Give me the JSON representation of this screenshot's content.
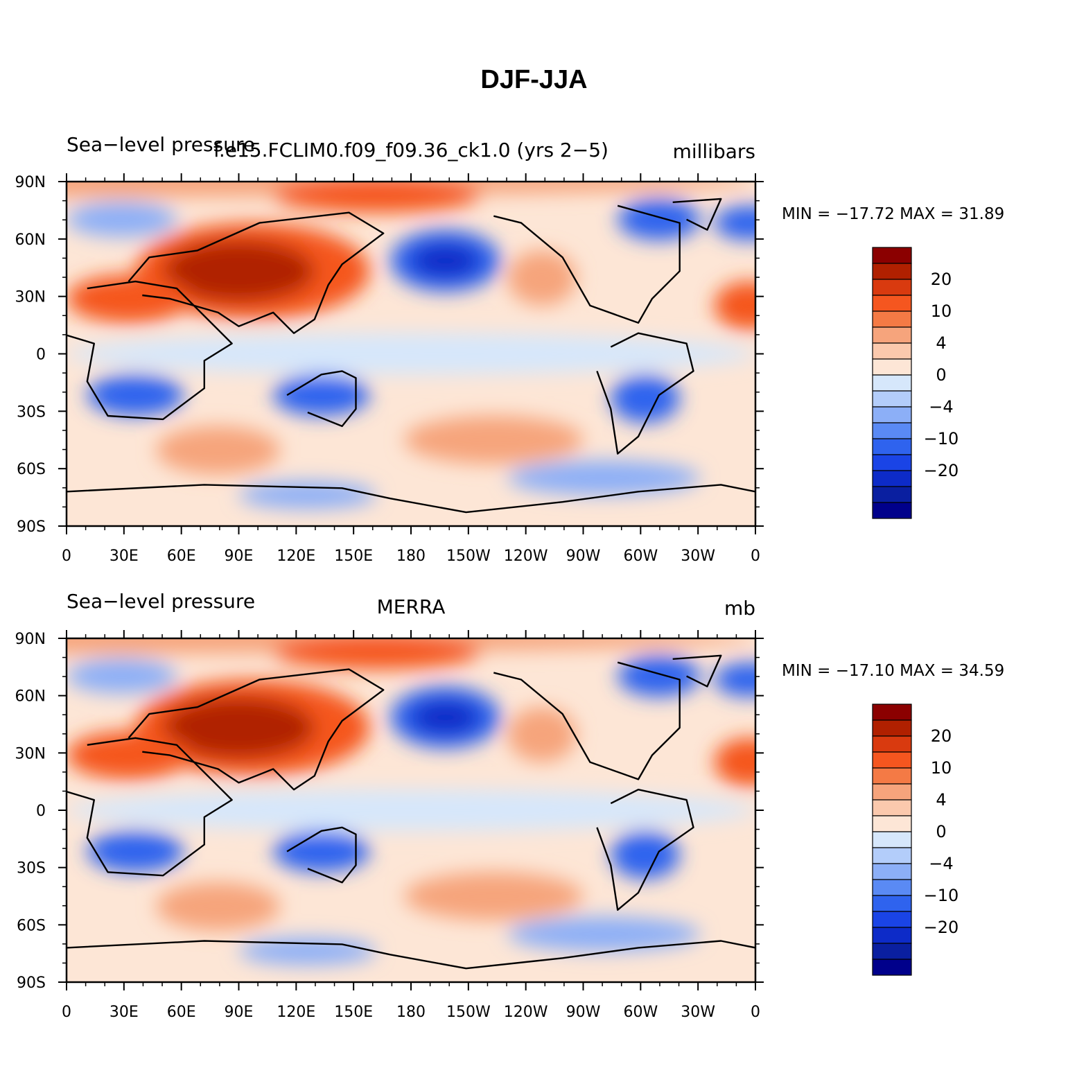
{
  "figure": {
    "title": "DJF-JJA"
  },
  "panels": [
    {
      "id": "model",
      "left_title": "Sea−level pressure",
      "center_title": "f.e15.FCLIM0.f09_f09.36_ck1.0 (yrs 2−5)",
      "right_title": "millibars",
      "min_max": "MIN = −17.72  MAX =   31.89",
      "lat_ticks": [
        "90N",
        "60N",
        "30N",
        "0",
        "30S",
        "60S",
        "90S"
      ],
      "lon_ticks": [
        "0",
        "30E",
        "60E",
        "90E",
        "120E",
        "150E",
        "180",
        "150W",
        "120W",
        "90W",
        "60W",
        "30W",
        "0"
      ],
      "colorbar_labels": [
        "20",
        "10",
        "4",
        "0",
        "−4",
        "−10",
        "−20"
      ]
    },
    {
      "id": "obs",
      "left_title": "Sea−level pressure",
      "center_title": "MERRA",
      "right_title": "mb",
      "min_max": "MIN = −17.10  MAX =   34.59",
      "lat_ticks": [
        "90N",
        "60N",
        "30N",
        "0",
        "30S",
        "60S",
        "90S"
      ],
      "lon_ticks": [
        "0",
        "30E",
        "60E",
        "90E",
        "120E",
        "150E",
        "180",
        "150W",
        "120W",
        "90W",
        "60W",
        "30W",
        "0"
      ],
      "colorbar_labels": [
        "20",
        "10",
        "4",
        "0",
        "−4",
        "−10",
        "−20"
      ]
    }
  ],
  "colorbar_colors": [
    "#8b0000",
    "#b02000",
    "#d93a0f",
    "#f5561f",
    "#f47a45",
    "#f6a47c",
    "#fbc9ad",
    "#fde6d6",
    "#d6e7fb",
    "#b3cdfa",
    "#8caff7",
    "#5a8af4",
    "#2f63ee",
    "#1a44e6",
    "#0d2bc8",
    "#0a1fa0",
    "#00008b"
  ],
  "colormap": {
    "strong_pos": "#b02000",
    "pos": "#f5561f",
    "mid_pos": "#f6a47c",
    "weak_pos": "#fde6d6",
    "weak_neg": "#d6e7fb",
    "mid_neg": "#8caff7",
    "neg": "#2f63ee",
    "strong_neg": "#0d2bc8"
  }
}
